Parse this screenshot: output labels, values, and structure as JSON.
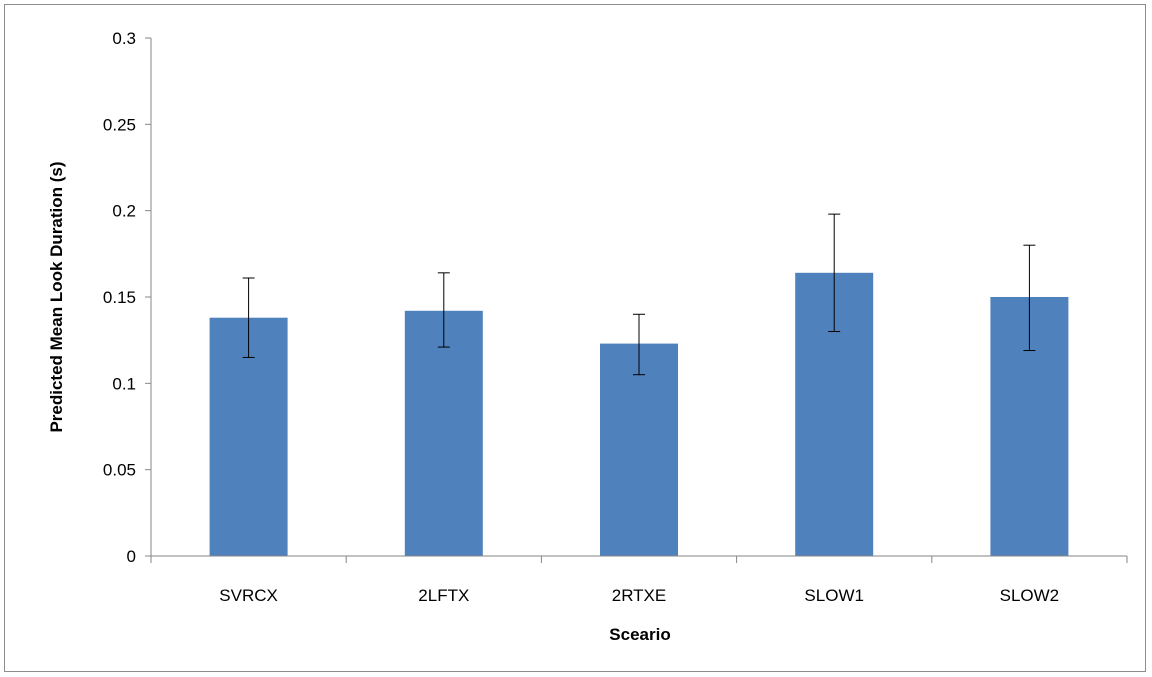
{
  "chart_data": {
    "type": "bar",
    "title": "",
    "xlabel": "Sceario",
    "ylabel": "Predicted Mean Look Duration  (s)",
    "categories": [
      "SVRCX",
      "2LFTX",
      "2RTXE",
      "SLOW1",
      "SLOW2"
    ],
    "values": [
      0.138,
      0.142,
      0.123,
      0.164,
      0.15
    ],
    "error_bars": {
      "upper": [
        0.161,
        0.164,
        0.14,
        0.198,
        0.18
      ],
      "lower": [
        0.115,
        0.121,
        0.105,
        0.13,
        0.119
      ]
    },
    "ylim": [
      0,
      0.3
    ],
    "yticks": [
      0,
      0.05,
      0.1,
      0.15,
      0.2,
      0.25,
      0.3
    ],
    "ytick_labels": [
      "0",
      "0.05",
      "0.1",
      "0.15",
      "0.2",
      "0.25",
      "0.3"
    ],
    "grid": false,
    "legend": "none",
    "bar_color": "#4f81bd",
    "axis_color": "#868686"
  }
}
